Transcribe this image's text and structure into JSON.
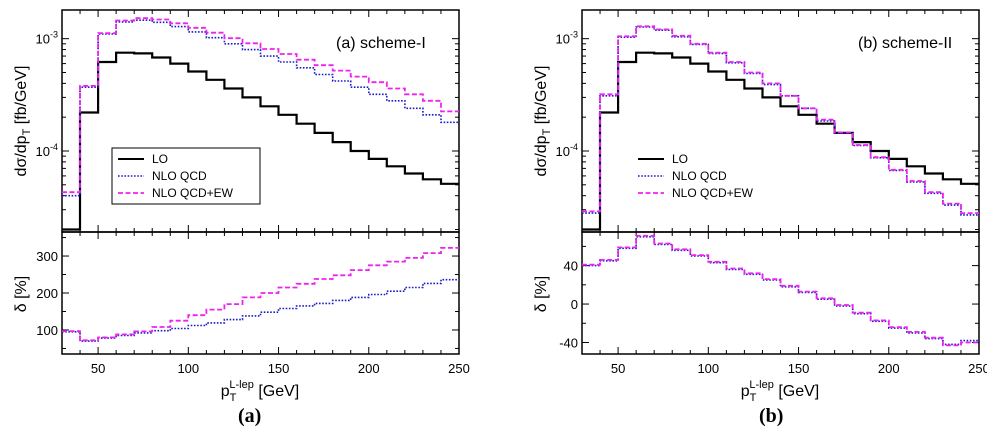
{
  "figure": {
    "caption_a": "(a)",
    "caption_b": "(b)"
  },
  "legend": {
    "lo": "LO",
    "nlo_qcd": "NLO QCD",
    "nlo_qcd_ew": "NLO QCD+EW"
  },
  "colors": {
    "lo": "#000000",
    "nlo_qcd": "#1a1acc",
    "nlo_qcd_ew": "#ee22ee"
  },
  "axes": {
    "xlabel_main": "p",
    "xlabel_sub": "T",
    "xlabel_sup": "L-lep",
    "xlabel_unit": " [GeV]",
    "ylabel_top_pre": "d",
    "ylabel_top_sigma": "σ",
    "ylabel_top_mid": "/dp",
    "ylabel_top_sub": "T",
    "ylabel_top_unit": " [fb/GeV]",
    "ylabel_bottom_delta": "δ",
    "ylabel_bottom_unit": " [%]"
  },
  "chart_data": [
    {
      "type": "line",
      "panel": "a",
      "title": "(a) scheme-I",
      "x_edges": [
        30,
        35,
        40,
        50,
        60,
        70,
        80,
        90,
        100,
        110,
        120,
        130,
        140,
        150,
        160,
        170,
        180,
        190,
        200,
        210,
        220,
        230,
        240,
        250
      ],
      "xlim": [
        30,
        250
      ],
      "x_ticks": [
        50,
        100,
        150,
        200,
        250
      ],
      "x_tick_labels": [
        "50",
        "100",
        "150",
        "200",
        "250"
      ],
      "top": {
        "yscale": "log",
        "ylim": [
          1.9e-05,
          0.0018
        ],
        "y_ticks": [
          0.0001,
          0.001
        ],
        "y_tick_base": "10",
        "y_tick_exps": [
          "-4",
          "-3"
        ],
        "series": [
          {
            "name": "LO",
            "values": [
              2e-05,
              2e-05,
              0.00022,
              0.00062,
              0.00075,
              0.00074,
              0.00068,
              0.0006,
              0.00051,
              0.00043,
              0.00036,
              0.0003,
              0.00025,
              0.00021,
              0.000175,
              0.000145,
              0.00012,
              0.0001,
              8.5e-05,
              7.3e-05,
              6.3e-05,
              5.6e-05,
              5.1e-05
            ]
          },
          {
            "name": "NLO QCD",
            "values": [
              4e-05,
              4e-05,
              0.00037,
              0.0011,
              0.00141,
              0.00146,
              0.0014,
              0.00128,
              0.00115,
              0.00102,
              0.0009,
              0.0008,
              0.0007,
              0.00062,
              0.00055,
              0.00048,
              0.00042,
              0.00037,
              0.00032,
              0.00028,
              0.00024,
              0.00021,
              0.00018
            ]
          },
          {
            "name": "NLO QCD+EW",
            "values": [
              4.3e-05,
              4.3e-05,
              0.00038,
              0.00112,
              0.00145,
              0.00152,
              0.00148,
              0.00137,
              0.00125,
              0.00113,
              0.00101,
              0.00091,
              0.00081,
              0.00073,
              0.00065,
              0.00058,
              0.00052,
              0.00046,
              0.00041,
              0.00036,
              0.00032,
              0.00028,
              0.000225
            ]
          }
        ]
      },
      "bottom": {
        "ylabel": "δ [%]",
        "ylim": [
          35,
          365
        ],
        "y_ticks": [
          100,
          200,
          300
        ],
        "y_tick_labels": [
          "100",
          "200",
          "300"
        ],
        "series": [
          {
            "name": "NLO QCD",
            "values": [
              95,
              95,
              70,
              78,
              85,
              92,
              98,
              104,
              112,
              119,
              128,
              138,
              148,
              158,
              165,
              172,
              180,
              188,
              196,
              205,
              215,
              226,
              236
            ]
          },
          {
            "name": "NLO QCD+EW",
            "values": [
              97,
              97,
              72,
              80,
              88,
              96,
              108,
              125,
              140,
              155,
              170,
              188,
              200,
              215,
              225,
              238,
              248,
              262,
              275,
              285,
              295,
              308,
              322
            ]
          }
        ]
      }
    },
    {
      "type": "line",
      "panel": "b",
      "title": "(b) scheme-II",
      "x_edges": [
        30,
        35,
        40,
        50,
        60,
        70,
        80,
        90,
        100,
        110,
        120,
        130,
        140,
        150,
        160,
        170,
        180,
        190,
        200,
        210,
        220,
        230,
        240,
        250
      ],
      "xlim": [
        30,
        250
      ],
      "x_ticks": [
        50,
        100,
        150,
        200,
        250
      ],
      "x_tick_labels": [
        "50",
        "100",
        "150",
        "200",
        "250"
      ],
      "top": {
        "yscale": "log",
        "ylim": [
          1.9e-05,
          0.0018
        ],
        "y_ticks": [
          0.0001,
          0.001
        ],
        "y_tick_base": "10",
        "y_tick_exps": [
          "-4",
          "-3"
        ],
        "series": [
          {
            "name": "LO",
            "values": [
              2e-05,
              2e-05,
              0.00022,
              0.00062,
              0.00075,
              0.00074,
              0.00068,
              0.0006,
              0.00051,
              0.00043,
              0.00036,
              0.0003,
              0.00025,
              0.00021,
              0.000175,
              0.000145,
              0.00012,
              0.0001,
              8.5e-05,
              7.3e-05,
              6.3e-05,
              5.6e-05,
              5.1e-05
            ]
          },
          {
            "name": "NLO QCD",
            "values": [
              2.8e-05,
              2.8e-05,
              0.00031,
              0.00103,
              0.00127,
              0.00119,
              0.00104,
              0.00089,
              0.00074,
              0.00061,
              0.00049,
              0.00039,
              0.00031,
              0.00024,
              0.000185,
              0.000145,
              0.000112,
              8.7e-05,
              6.7e-05,
              5.3e-05,
              4.2e-05,
              3.3e-05,
              2.7e-05
            ]
          },
          {
            "name": "NLO QCD+EW",
            "values": [
              2.9e-05,
              2.9e-05,
              0.00032,
              0.00105,
              0.00129,
              0.00121,
              0.00106,
              0.0009,
              0.00075,
              0.00062,
              0.0005,
              0.0004,
              0.00031,
              0.00024,
              0.00019,
              0.000146,
              0.000113,
              8.8e-05,
              6.8e-05,
              5.4e-05,
              4.3e-05,
              3.4e-05,
              2.8e-05
            ]
          }
        ]
      },
      "bottom": {
        "ylabel": "δ [%]",
        "ylim": [
          -52,
          75
        ],
        "y_ticks": [
          -40,
          0,
          40
        ],
        "y_tick_labels": [
          "-40",
          "0",
          "40"
        ],
        "series": [
          {
            "name": "NLO QCD",
            "values": [
              40,
              40,
              45,
              58,
              70,
              62,
              56,
              50,
              43,
              36,
              31,
              25,
              18,
              12,
              5,
              -2,
              -10,
              -18,
              -25,
              -30,
              -36,
              -42,
              -38
            ]
          },
          {
            "name": "NLO QCD+EW",
            "values": [
              41,
              41,
              46,
              59,
              71,
              63,
              57,
              51,
              44,
              37,
              32,
              26,
              19,
              13,
              6,
              -1,
              -9,
              -17,
              -24,
              -29,
              -35,
              -43,
              -40
            ]
          }
        ]
      }
    }
  ]
}
